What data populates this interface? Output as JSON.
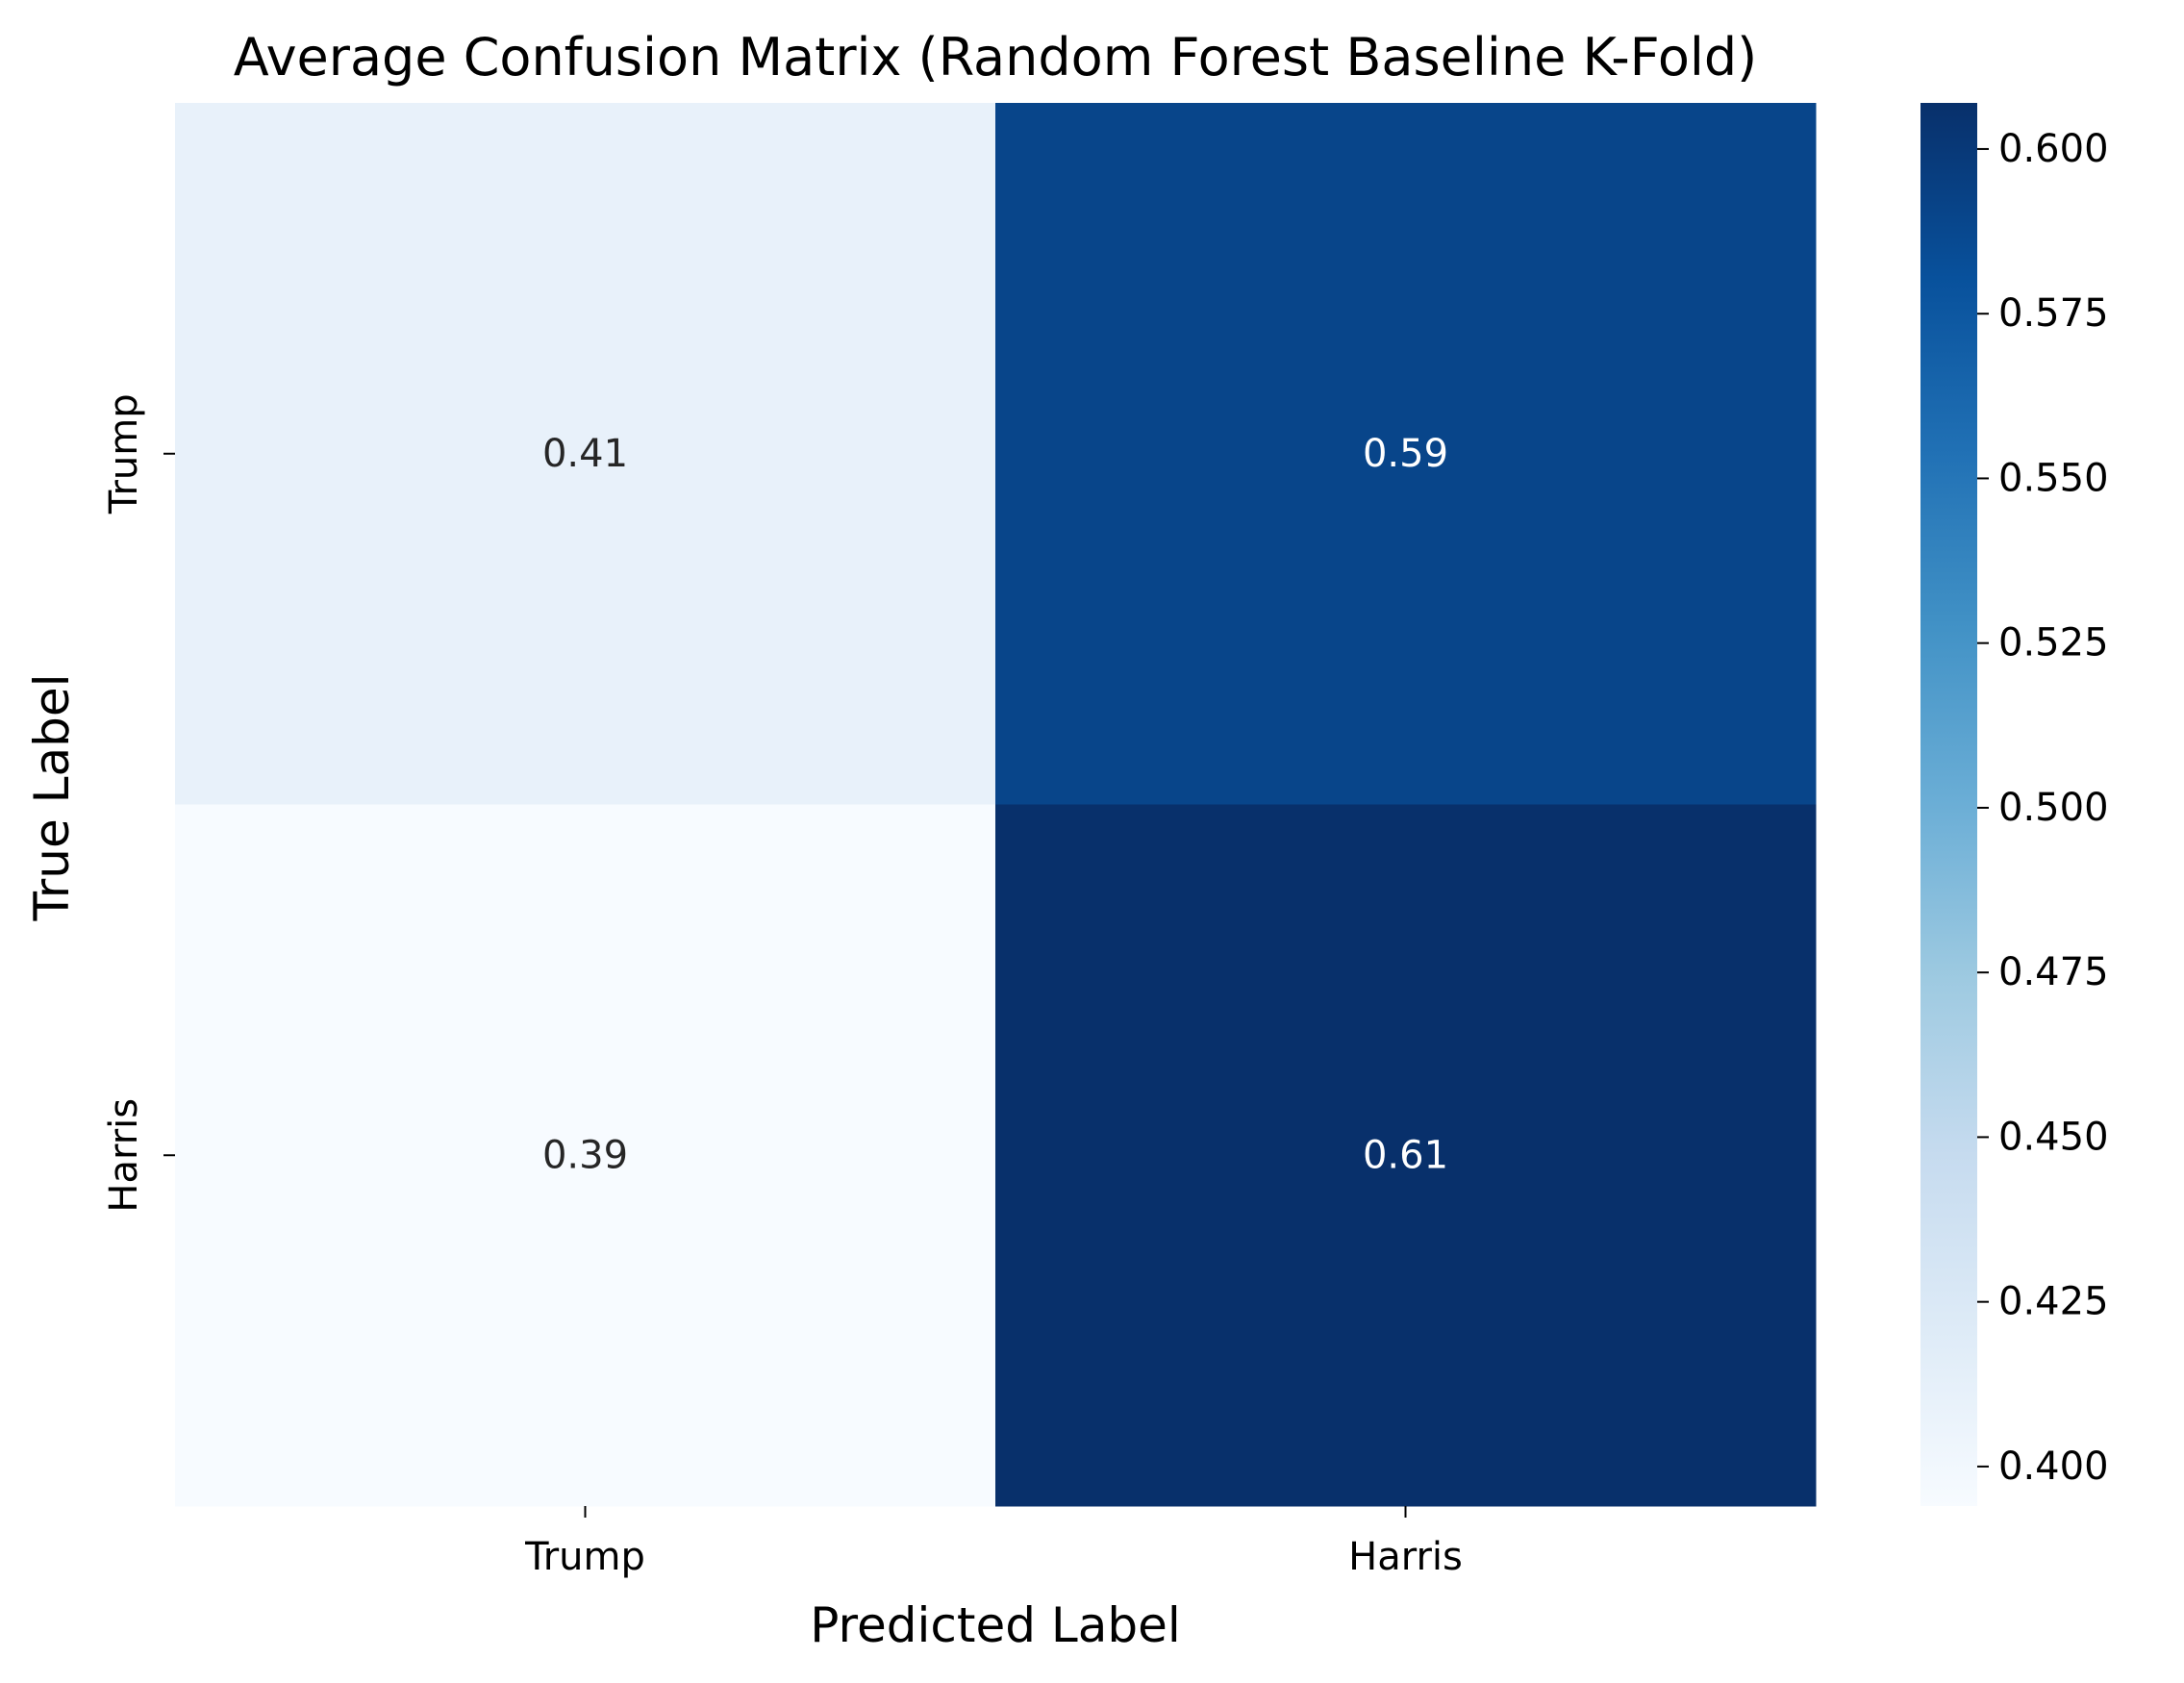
{
  "chart_data": {
    "type": "heatmap",
    "title": "Average Confusion Matrix (Random Forest Baseline K-Fold)",
    "xlabel": "Predicted Label",
    "ylabel": "True Label",
    "x_categories": [
      "Trump",
      "Harris"
    ],
    "y_categories": [
      "Trump",
      "Harris"
    ],
    "values": [
      [
        0.41,
        0.59
      ],
      [
        0.39,
        0.61
      ]
    ],
    "annotations": [
      [
        "0.41",
        "0.59"
      ],
      [
        "0.39",
        "0.61"
      ]
    ],
    "colormap": "Blues",
    "colorbar": {
      "range": [
        0.394,
        0.607
      ],
      "ticks": [
        0.4,
        0.425,
        0.45,
        0.475,
        0.5,
        0.525,
        0.55,
        0.575,
        0.6
      ],
      "tick_labels": [
        "0.400",
        "0.425",
        "0.450",
        "0.475",
        "0.500",
        "0.525",
        "0.550",
        "0.575",
        "0.600"
      ]
    }
  }
}
